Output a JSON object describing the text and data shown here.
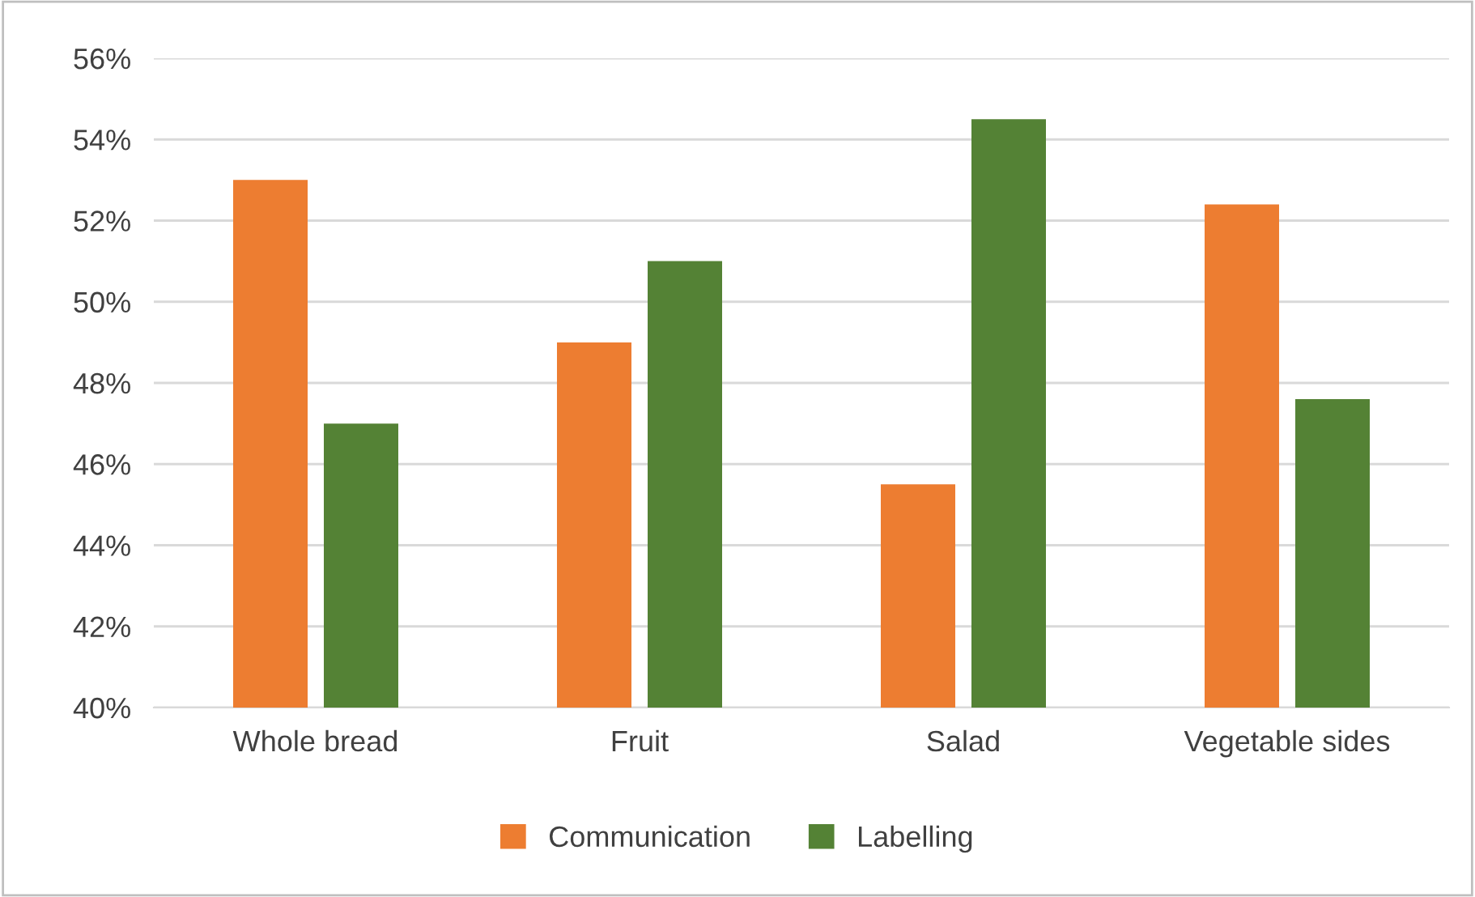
{
  "chart_data": {
    "type": "bar",
    "categories": [
      "Whole bread",
      "Fruit",
      "Salad",
      "Vegetable sides"
    ],
    "series": [
      {
        "name": "Communication",
        "color": "#ed7d31",
        "values": [
          53.0,
          49.0,
          45.5,
          52.4
        ]
      },
      {
        "name": "Labelling",
        "color": "#548235",
        "values": [
          47.0,
          51.0,
          54.5,
          47.6
        ]
      }
    ],
    "ylim": [
      40,
      56
    ],
    "yticks": [
      {
        "value": 40,
        "label": "40%"
      },
      {
        "value": 42,
        "label": "42%"
      },
      {
        "value": 44,
        "label": "44%"
      },
      {
        "value": 46,
        "label": "46%"
      },
      {
        "value": 48,
        "label": "48%"
      },
      {
        "value": 50,
        "label": "50%"
      },
      {
        "value": 52,
        "label": "52%"
      },
      {
        "value": 54,
        "label": "54%"
      },
      {
        "value": 56,
        "label": "56%"
      }
    ],
    "grid": "y",
    "legend": "bottom"
  }
}
